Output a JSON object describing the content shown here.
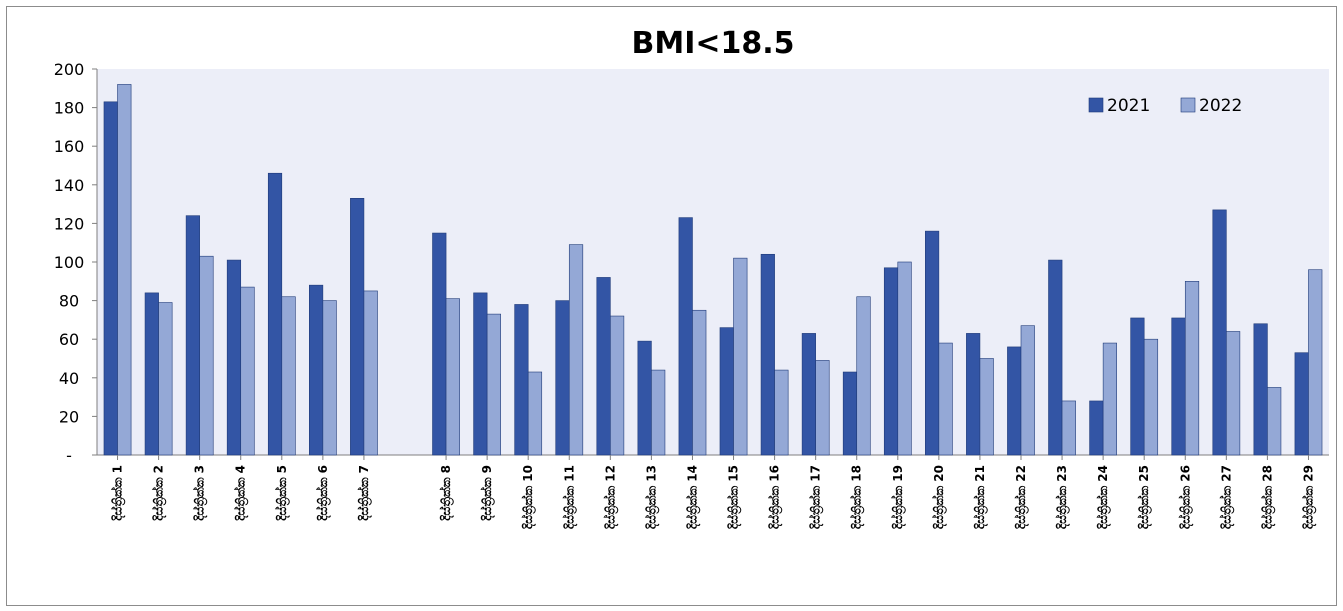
{
  "chart_data": {
    "type": "bar",
    "title": "BMI<18.5",
    "xlabel": "",
    "ylabel": "",
    "ylim": [
      0,
      200
    ],
    "yticks": [
      0,
      20,
      40,
      60,
      80,
      100,
      120,
      140,
      160,
      180,
      200
    ],
    "ytick_labels": [
      "-",
      "20",
      "40",
      "60",
      "80",
      "100",
      "120",
      "140",
      "160",
      "180",
      "200"
    ],
    "legend_position": "top-right",
    "grid": false,
    "colors": {
      "2021": "#3355a5",
      "2022": "#94a8d6",
      "plot_bg": "#eceef8"
    },
    "categories": [
      "දිස්ත්‍රික්ක 1",
      "දිස්ත්‍රික්ක 2",
      "දිස්ත්‍රික්ක 3",
      "දිස්ත්‍රික්ක 4",
      "දිස්ත්‍රික්ක 5",
      "දිස්ත්‍රික්ක 6",
      "දිස්ත්‍රික්ක 7",
      "",
      "දිස්ත්‍රික්ක 8",
      "දිස්ත්‍රික්ක 9",
      "දිස්ත්‍රික්ක 10",
      "දිස්ත්‍රික්ක 11",
      "දිස්ත්‍රික්ක 12",
      "දිස්ත්‍රික්ක 13",
      "දිස්ත්‍රික්ක 14",
      "දිස්ත්‍රික්ක 15",
      "දිස්ත්‍රික්ක 16",
      "දිස්ත්‍රික්ක 17",
      "දිස්ත්‍රික්ක 18",
      "දිස්ත්‍රික්ක 19",
      "දිස්ත්‍රික්ක 20",
      "දිස්ත්‍රික්ක 21",
      "දිස්ත්‍රික්ක 22",
      "දිස්ත්‍රික්ක 23",
      "දිස්ත්‍රික්ක 24",
      "දිස්ත්‍රික්ක 25",
      "දිස්ත්‍රික්ක 26",
      "දිස්ත්‍රික්ක 27",
      "දිස්ත්‍රික්ක 28",
      "දිස්ත්‍රික්ක 29"
    ],
    "series": [
      {
        "name": "2021",
        "values": [
          183,
          84,
          124,
          101,
          146,
          88,
          133,
          null,
          115,
          84,
          78,
          80,
          92,
          59,
          123,
          66,
          104,
          63,
          43,
          97,
          116,
          63,
          56,
          101,
          28,
          71,
          71,
          127,
          68,
          53
        ]
      },
      {
        "name": "2022",
        "values": [
          192,
          79,
          103,
          87,
          82,
          80,
          85,
          null,
          81,
          73,
          43,
          109,
          72,
          44,
          75,
          102,
          44,
          49,
          82,
          100,
          58,
          50,
          67,
          28,
          58,
          60,
          90,
          64,
          35,
          96
        ]
      }
    ]
  }
}
